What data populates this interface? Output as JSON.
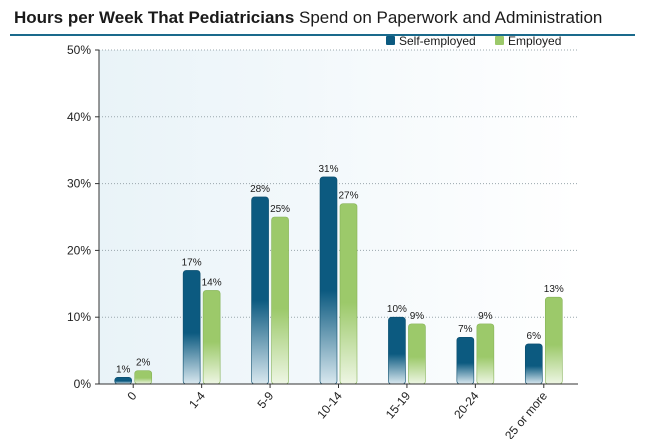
{
  "title_bold": "Hours per Week That Pediatricians",
  "title_rest": " Spend on Paperwork and Administration",
  "chart_data": {
    "type": "bar",
    "title": "Hours per Week That Pediatricians Spend on Paperwork and Administration",
    "categories": [
      "0",
      "1-4",
      "5-9",
      "10-14",
      "15-19",
      "20-24",
      "25 or more"
    ],
    "series": [
      {
        "name": "Self-employed",
        "values": [
          1,
          17,
          28,
          31,
          10,
          7,
          6
        ],
        "labels": [
          "1%",
          "17%",
          "28%",
          "31%",
          "10%",
          "7%",
          "6%"
        ],
        "color": "#0c5a80"
      },
      {
        "name": "Employed",
        "values": [
          2,
          14,
          25,
          27,
          9,
          9,
          13
        ],
        "labels": [
          "2%",
          "14%",
          "25%",
          "27%",
          "9%",
          "9%",
          "13%"
        ],
        "color": "#9cc96a"
      }
    ],
    "yticks": [
      "0%",
      "10%",
      "20%",
      "30%",
      "40%",
      "50%"
    ],
    "ylim": [
      0,
      50
    ],
    "grid": true,
    "legend": "top-right"
  }
}
